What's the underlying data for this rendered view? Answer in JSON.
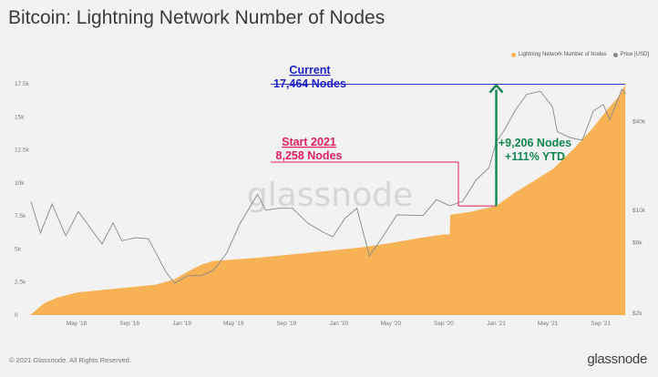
{
  "header": {
    "title": "Bitcoin: Lightning Network Number of Nodes"
  },
  "legend": {
    "items": [
      {
        "label": "Lightning Network Number of Nodes",
        "color": "#f7b255"
      },
      {
        "label": "Price [USD]",
        "color": "#888888"
      }
    ]
  },
  "footer": {
    "copyright": "© 2021 Glassnode. All Rights Reserved.",
    "brand": "glassnode"
  },
  "watermark": "glassnode",
  "chart_data": {
    "type": "area",
    "title": "Bitcoin: Lightning Network Number of Nodes",
    "x_ticks": [
      "May '18",
      "Sep '18",
      "Jan '19",
      "May '19",
      "Sep '19",
      "Jan '20",
      "May '20",
      "Sep '20",
      "Jan '21",
      "May '21",
      "Sep '21"
    ],
    "y_left_ticks": [
      "0",
      "2.5k",
      "5k",
      "7.5k",
      "10k",
      "12.5k",
      "15k",
      "17.5k"
    ],
    "y_right_ticks": [
      "$2k",
      "$6k",
      "$10k",
      "$40k"
    ],
    "ylim_left": [
      0,
      17500
    ],
    "series": [
      {
        "name": "Lightning Network Number of Nodes",
        "color": "#f7b255",
        "points": [
          [
            "2018-01-15",
            50
          ],
          [
            "2018-02-15",
            900
          ],
          [
            "2018-03-15",
            1300
          ],
          [
            "2018-05-01",
            1700
          ],
          [
            "2018-07-01",
            1900
          ],
          [
            "2018-09-01",
            2100
          ],
          [
            "2018-11-01",
            2300
          ],
          [
            "2018-12-15",
            2700
          ],
          [
            "2019-01-15",
            3300
          ],
          [
            "2019-02-15",
            3800
          ],
          [
            "2019-03-15",
            4100
          ],
          [
            "2019-05-01",
            4200
          ],
          [
            "2019-07-01",
            4350
          ],
          [
            "2019-09-01",
            4550
          ],
          [
            "2019-11-01",
            4750
          ],
          [
            "2020-01-01",
            4950
          ],
          [
            "2020-03-01",
            5150
          ],
          [
            "2020-05-01",
            5450
          ],
          [
            "2020-07-01",
            5800
          ],
          [
            "2020-09-01",
            6100
          ],
          [
            "2020-09-15",
            6100
          ],
          [
            "2020-09-16",
            7600
          ],
          [
            "2020-11-01",
            7800
          ],
          [
            "2021-01-01",
            8258
          ],
          [
            "2021-02-15",
            9300
          ],
          [
            "2021-04-01",
            10200
          ],
          [
            "2021-05-15",
            11100
          ],
          [
            "2021-07-01",
            12600
          ],
          [
            "2021-08-15",
            14200
          ],
          [
            "2021-09-15",
            15500
          ],
          [
            "2021-10-15",
            16600
          ],
          [
            "2021-10-28",
            17464
          ]
        ]
      },
      {
        "name": "Price [USD]",
        "color": "#888888",
        "points": [
          [
            "2018-01-15",
            11500
          ],
          [
            "2018-02-06",
            7000
          ],
          [
            "2018-03-05",
            11000
          ],
          [
            "2018-04-06",
            6700
          ],
          [
            "2018-05-05",
            9800
          ],
          [
            "2018-06-29",
            5900
          ],
          [
            "2018-07-25",
            8200
          ],
          [
            "2018-08-14",
            6200
          ],
          [
            "2018-09-15",
            6500
          ],
          [
            "2018-10-15",
            6400
          ],
          [
            "2018-11-25",
            3800
          ],
          [
            "2018-12-15",
            3200
          ],
          [
            "2019-01-15",
            3600
          ],
          [
            "2019-02-15",
            3600
          ],
          [
            "2019-03-15",
            3900
          ],
          [
            "2019-04-15",
            5100
          ],
          [
            "2019-05-15",
            8000
          ],
          [
            "2019-06-26",
            12800
          ],
          [
            "2019-07-15",
            10000
          ],
          [
            "2019-08-15",
            10300
          ],
          [
            "2019-09-15",
            10300
          ],
          [
            "2019-10-20",
            8200
          ],
          [
            "2019-11-25",
            7100
          ],
          [
            "2019-12-18",
            6600
          ],
          [
            "2020-01-15",
            8800
          ],
          [
            "2020-02-12",
            10300
          ],
          [
            "2020-03-12",
            4900
          ],
          [
            "2020-04-15",
            6800
          ],
          [
            "2020-05-15",
            9300
          ],
          [
            "2020-07-15",
            9200
          ],
          [
            "2020-08-15",
            11800
          ],
          [
            "2020-09-15",
            10700
          ],
          [
            "2020-10-15",
            11500
          ],
          [
            "2020-11-15",
            16000
          ],
          [
            "2020-12-15",
            19400
          ],
          [
            "2021-01-01",
            29000
          ],
          [
            "2021-01-20",
            35000
          ],
          [
            "2021-02-15",
            48000
          ],
          [
            "2021-03-13",
            61000
          ],
          [
            "2021-04-14",
            64000
          ],
          [
            "2021-05-12",
            50000
          ],
          [
            "2021-05-23",
            34000
          ],
          [
            "2021-06-22",
            31000
          ],
          [
            "2021-07-20",
            29800
          ],
          [
            "2021-08-15",
            47000
          ],
          [
            "2021-09-07",
            52000
          ],
          [
            "2021-09-22",
            41000
          ],
          [
            "2021-10-20",
            66000
          ],
          [
            "2021-10-30",
            61500
          ]
        ]
      }
    ],
    "annotations": {
      "current_label": "Current",
      "current_value": "17,464 Nodes",
      "start_label": "Start 2021",
      "start_value": "8,258 Nodes",
      "change_nodes": "+9,206 Nodes",
      "change_pct": "+111% YTD",
      "current_nodes": 17464,
      "start_nodes": 8258
    },
    "grid": false,
    "legend_position": "top-right"
  }
}
